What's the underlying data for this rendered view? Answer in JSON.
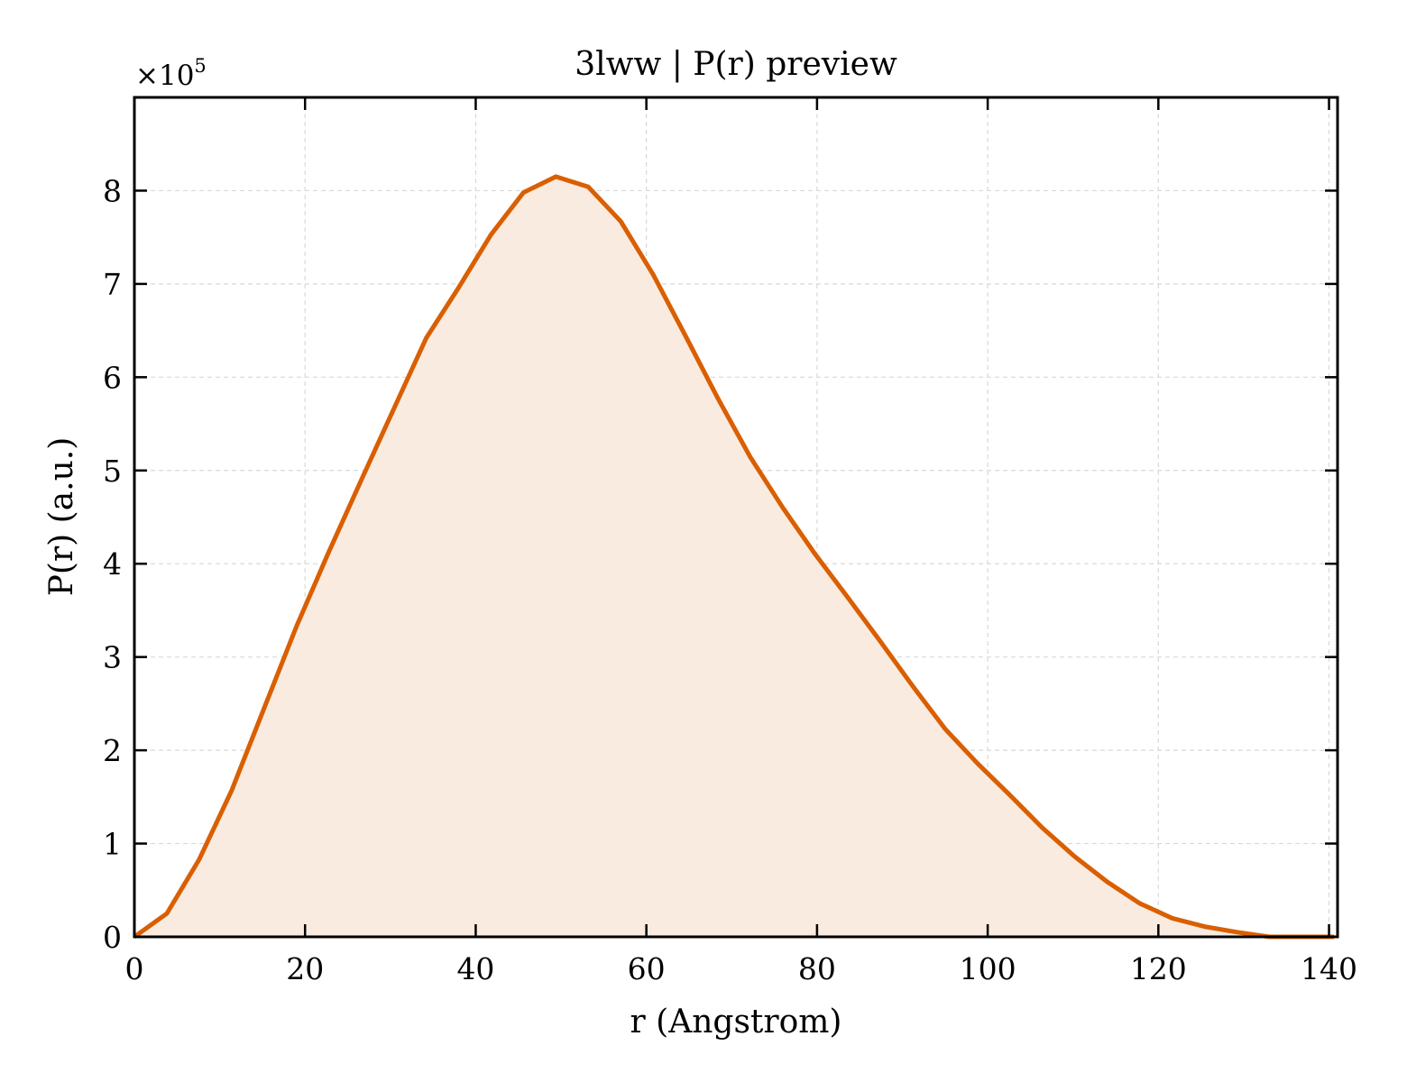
{
  "chart_data": {
    "type": "area",
    "title": "3lww | P(r) preview",
    "xlabel": "r (Angstrom)",
    "ylabel": "P(r) (a.u.)",
    "y_multiplier_label": "×10",
    "y_multiplier_exponent": "5",
    "xlim": [
      0,
      141
    ],
    "ylim": [
      0,
      9.0
    ],
    "xticks": [
      0,
      20,
      40,
      60,
      80,
      100,
      120,
      140
    ],
    "yticks": [
      0,
      1,
      2,
      3,
      4,
      5,
      6,
      7,
      8
    ],
    "grid": true,
    "line_color": "#d95f02",
    "fill_color": "#f9ebe0",
    "x": [
      0,
      3.8,
      7.6,
      11.4,
      15.2,
      19.0,
      22.8,
      26.6,
      30.4,
      34.2,
      38.0,
      41.8,
      45.6,
      49.4,
      53.2,
      57.0,
      60.8,
      64.6,
      68.4,
      72.2,
      76.0,
      79.8,
      83.6,
      87.4,
      91.2,
      95.0,
      98.8,
      102.6,
      106.4,
      110.2,
      114.0,
      117.8,
      121.6,
      125.4,
      129.2,
      133.0,
      136.8,
      140.6
    ],
    "y": [
      0.0,
      0.25,
      0.83,
      1.57,
      2.45,
      3.33,
      4.13,
      4.9,
      5.66,
      6.42,
      6.96,
      7.53,
      7.98,
      8.15,
      8.04,
      7.67,
      7.1,
      6.44,
      5.77,
      5.14,
      4.6,
      4.1,
      3.64,
      3.17,
      2.69,
      2.23,
      1.86,
      1.52,
      1.17,
      0.86,
      0.59,
      0.36,
      0.2,
      0.11,
      0.05,
      0.0,
      0.0,
      0.0
    ]
  }
}
